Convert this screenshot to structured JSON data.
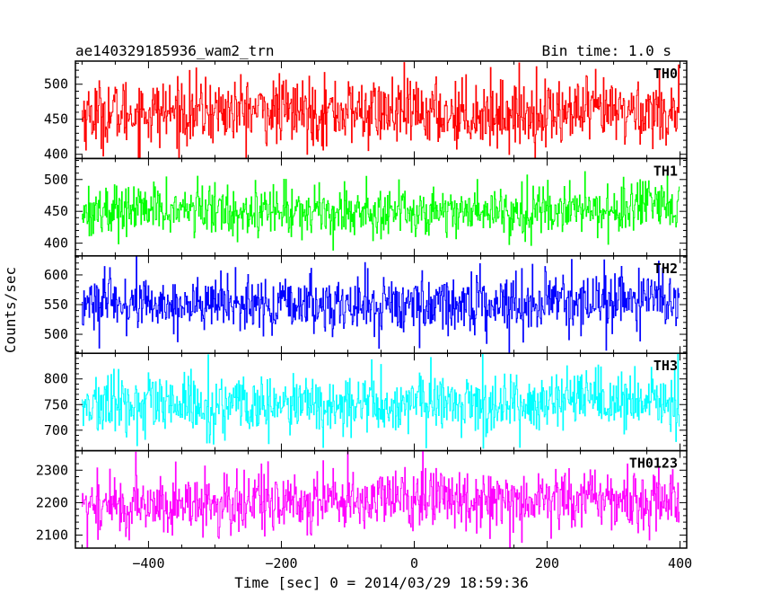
{
  "chart_data": {
    "type": "line",
    "title_left": "ae140329185936_wam2_trn",
    "title_right": "Bin time: 1.0 s",
    "xlabel": "Time [sec] 0 = 2014/03/29 18:59:36",
    "ylabel": "Counts/sec",
    "xlim": [
      -510,
      410
    ],
    "x_ticks": [
      -400,
      -200,
      0,
      200,
      400
    ],
    "x_tick_labels": [
      "−400",
      "−200",
      "0",
      "200",
      "400"
    ],
    "x_range": [
      -500,
      399
    ],
    "bin_time": 1.0,
    "series": [
      {
        "name": "TH0",
        "color": "#ff0000",
        "ylim": [
          394,
          533
        ],
        "mean": 460,
        "noise": 24,
        "trend": 6,
        "y_ticks": [
          400,
          450,
          500
        ],
        "y_tick_labels": [
          "400",
          "450",
          "500"
        ]
      },
      {
        "name": "TH1",
        "color": "#00ff00",
        "ylim": [
          380,
          533
        ],
        "mean": 452,
        "noise": 20,
        "trend": 4,
        "y_ticks": [
          400,
          450,
          500
        ],
        "y_tick_labels": [
          "400",
          "450",
          "500"
        ]
      },
      {
        "name": "TH2",
        "color": "#0000ff",
        "ylim": [
          468,
          632
        ],
        "mean": 552,
        "noise": 24,
        "trend": 6,
        "y_ticks": [
          500,
          550,
          600
        ],
        "y_tick_labels": [
          "500",
          "550",
          "600"
        ]
      },
      {
        "name": "TH3",
        "color": "#00ffff",
        "ylim": [
          660,
          850
        ],
        "mean": 750,
        "noise": 30,
        "trend": 5,
        "y_ticks": [
          700,
          750,
          800
        ],
        "y_tick_labels": [
          "700",
          "750",
          "800"
        ]
      },
      {
        "name": "TH0123",
        "color": "#ff00ff",
        "ylim": [
          2060,
          2360
        ],
        "mean": 2205,
        "noise": 48,
        "trend": 15,
        "y_ticks": [
          2100,
          2200,
          2300
        ],
        "y_tick_labels": [
          "2100",
          "2200",
          "2300"
        ]
      }
    ]
  }
}
